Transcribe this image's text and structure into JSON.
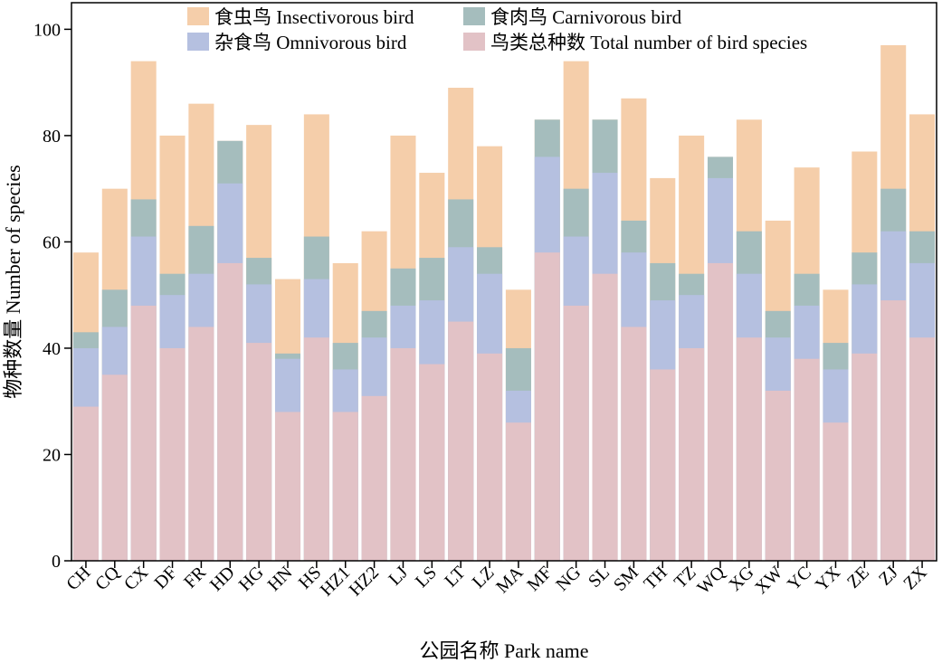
{
  "chart_data": {
    "type": "bar",
    "stacked": false,
    "xlabel": "公园名称 Park name",
    "ylabel": "物种数量 Number of species",
    "ylim": [
      0,
      105
    ],
    "yticks": [
      0,
      20,
      40,
      60,
      80,
      100
    ],
    "legend_position": "top-center",
    "categories": [
      "CH",
      "CQ",
      "CX",
      "DF",
      "FR",
      "HD",
      "HG",
      "HN",
      "HS",
      "HZ1",
      "HZ2",
      "LJ",
      "LS",
      "LT",
      "LZ",
      "MA",
      "MF",
      "NG",
      "SL",
      "SM",
      "TH",
      "TZ",
      "WQ",
      "XG",
      "XW",
      "YC",
      "YX",
      "ZE",
      "ZJ",
      "ZX"
    ],
    "series": [
      {
        "name": "食虫鸟 Insectivorous bird",
        "color": "#f5ceaa",
        "values": [
          58,
          70,
          94,
          80,
          86,
          79,
          82,
          53,
          84,
          56,
          62,
          80,
          73,
          89,
          78,
          51,
          83,
          94,
          83,
          87,
          72,
          80,
          76,
          83,
          64,
          74,
          51,
          77,
          97,
          84
        ]
      },
      {
        "name": "食肉鸟 Carnivorous bird",
        "color": "#a5bdbd",
        "values": [
          43,
          51,
          68,
          54,
          63,
          79,
          57,
          39,
          61,
          41,
          47,
          55,
          57,
          68,
          59,
          40,
          83,
          70,
          83,
          64,
          56,
          54,
          76,
          62,
          47,
          54,
          41,
          58,
          70,
          62
        ]
      },
      {
        "name": "杂食鸟 Omnivorous bird",
        "color": "#b5c0e0",
        "values": [
          40,
          44,
          61,
          50,
          54,
          71,
          52,
          38,
          53,
          36,
          42,
          48,
          49,
          59,
          54,
          32,
          76,
          61,
          73,
          58,
          49,
          50,
          72,
          54,
          42,
          48,
          36,
          52,
          62,
          56
        ]
      },
      {
        "name": "鸟类总种数 Total number of bird species",
        "color": "#e2c2c6",
        "values": [
          29,
          35,
          48,
          40,
          44,
          56,
          41,
          28,
          42,
          28,
          31,
          40,
          37,
          45,
          39,
          26,
          58,
          48,
          54,
          44,
          36,
          40,
          56,
          42,
          32,
          38,
          26,
          39,
          49,
          42
        ]
      }
    ],
    "legend_order": [
      0,
      1,
      2,
      3
    ]
  }
}
